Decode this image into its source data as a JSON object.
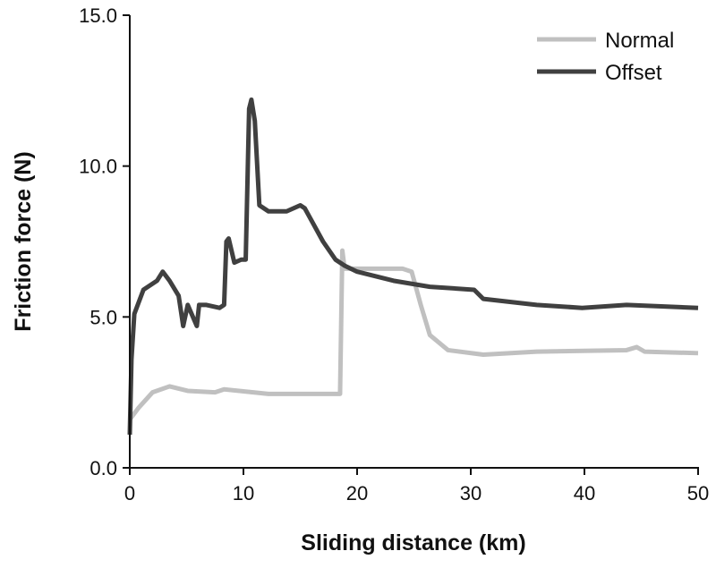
{
  "chart_data": {
    "type": "line",
    "title": "",
    "xlabel": "Sliding distance (km)",
    "ylabel": "Friction force (N)",
    "xlim": [
      0,
      50
    ],
    "ylim": [
      0,
      15
    ],
    "xticks": [
      0,
      10,
      20,
      30,
      40,
      50
    ],
    "xtick_labels": [
      "0",
      "10",
      "20",
      "30",
      "40",
      "50"
    ],
    "yticks": [
      0,
      5,
      10,
      15
    ],
    "ytick_labels": [
      "0.0",
      "5.0",
      "10.0",
      "15.0"
    ],
    "grid": false,
    "legend": "top-right",
    "series": [
      {
        "name": "Normal",
        "color": "#c0c0c0",
        "x": [
          0,
          0.8,
          2,
          3.5,
          5.1,
          7.5,
          8.3,
          12.2,
          15.4,
          18.5,
          18.7,
          18.9,
          20,
          21.7,
          24,
          24.8,
          25.6,
          26.4,
          28,
          31.1,
          35.8,
          43.7,
          44.6,
          45.3,
          50
        ],
        "y": [
          1.6,
          2.0,
          2.5,
          2.7,
          2.55,
          2.5,
          2.6,
          2.45,
          2.45,
          2.45,
          7.2,
          6.6,
          6.6,
          6.6,
          6.6,
          6.5,
          5.4,
          4.4,
          3.9,
          3.75,
          3.85,
          3.9,
          4.0,
          3.85,
          3.8
        ]
      },
      {
        "name": "Offset",
        "color": "#404040",
        "x": [
          0,
          0.15,
          0.4,
          1.2,
          2.4,
          2.9,
          3.5,
          4.3,
          4.7,
          5.1,
          5.9,
          6.1,
          6.7,
          7.9,
          8.3,
          8.5,
          8.7,
          9.2,
          9.8,
          10.2,
          10.5,
          10.7,
          11.0,
          11.4,
          12.2,
          13.8,
          15.0,
          15.4,
          17.0,
          18.1,
          18.9,
          20,
          23.2,
          26.4,
          30.3,
          31.1,
          35.8,
          39.8,
          43.7,
          50
        ],
        "y": [
          1.1,
          3.6,
          5.1,
          5.9,
          6.2,
          6.5,
          6.2,
          5.7,
          4.7,
          5.4,
          4.7,
          5.4,
          5.4,
          5.3,
          5.4,
          7.5,
          7.6,
          6.8,
          6.9,
          6.9,
          11.9,
          12.2,
          11.5,
          8.7,
          8.5,
          8.5,
          8.7,
          8.6,
          7.5,
          6.9,
          6.7,
          6.5,
          6.2,
          6.0,
          5.9,
          5.6,
          5.4,
          5.3,
          5.4,
          5.3
        ]
      }
    ]
  }
}
